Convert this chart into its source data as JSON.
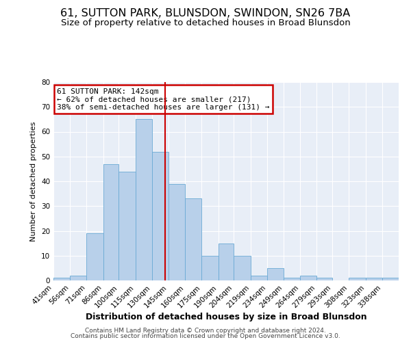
{
  "title": "61, SUTTON PARK, BLUNSDON, SWINDON, SN26 7BA",
  "subtitle": "Size of property relative to detached houses in Broad Blunsdon",
  "xlabel": "Distribution of detached houses by size in Broad Blunsdon",
  "ylabel": "Number of detached properties",
  "bin_labels": [
    "41sqm",
    "56sqm",
    "71sqm",
    "86sqm",
    "100sqm",
    "115sqm",
    "130sqm",
    "145sqm",
    "160sqm",
    "175sqm",
    "190sqm",
    "204sqm",
    "219sqm",
    "234sqm",
    "249sqm",
    "264sqm",
    "279sqm",
    "293sqm",
    "308sqm",
    "323sqm",
    "338sqm"
  ],
  "bin_edges": [
    41,
    56,
    71,
    86,
    100,
    115,
    130,
    145,
    160,
    175,
    190,
    204,
    219,
    234,
    249,
    264,
    279,
    293,
    308,
    323,
    338,
    353
  ],
  "bar_heights": [
    1,
    2,
    19,
    47,
    44,
    65,
    52,
    39,
    33,
    10,
    15,
    10,
    2,
    5,
    1,
    2,
    1,
    0,
    1,
    1,
    1
  ],
  "bar_color": "#b8d0ea",
  "bar_edge_color": "#6aaad4",
  "property_value": 142,
  "vline_color": "#cc0000",
  "annotation_line1": "61 SUTTON PARK: 142sqm",
  "annotation_line2": "← 62% of detached houses are smaller (217)",
  "annotation_line3": "38% of semi-detached houses are larger (131) →",
  "annotation_box_color": "#cc0000",
  "ylim": [
    0,
    80
  ],
  "yticks": [
    0,
    10,
    20,
    30,
    40,
    50,
    60,
    70,
    80
  ],
  "bg_color": "#e8eef7",
  "footer1": "Contains HM Land Registry data © Crown copyright and database right 2024.",
  "footer2": "Contains public sector information licensed under the Open Government Licence v3.0.",
  "title_fontsize": 11.5,
  "subtitle_fontsize": 9.5,
  "xlabel_fontsize": 9,
  "ylabel_fontsize": 8,
  "tick_fontsize": 7.5,
  "annotation_fontsize": 8,
  "footer_fontsize": 6.5
}
